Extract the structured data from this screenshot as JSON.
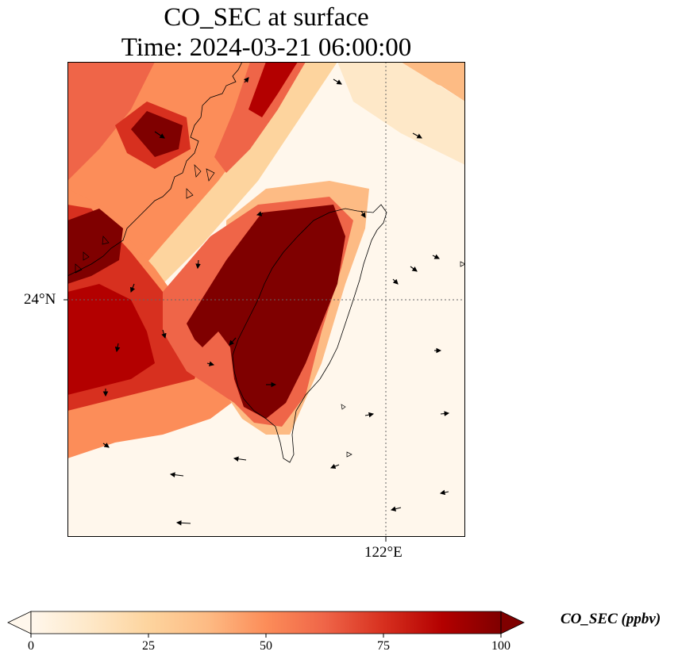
{
  "title_line1": "CO_SEC at surface",
  "title_line2": "Time: 2024-03-21 06:00:00",
  "map": {
    "lat_tick": "24°N",
    "lon_tick": "122°E",
    "projection": "lat-lon grid with coastlines and wind vectors",
    "colormap": "OrRd"
  },
  "colorbar": {
    "label": "CO_SEC (ppbv)",
    "min": 0,
    "max": 100,
    "extend": "both",
    "ticks": [
      "0",
      "25",
      "50",
      "75",
      "100"
    ],
    "colors": [
      "#fff7ec",
      "#fee8c8",
      "#fdd49e",
      "#fdbb84",
      "#fc8d59",
      "#ef6548",
      "#d7301f",
      "#b30000",
      "#7f0000"
    ]
  }
}
